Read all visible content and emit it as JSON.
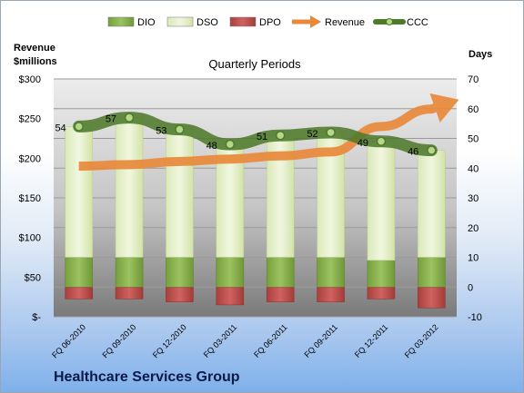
{
  "company_label": "Healthcare Services Group",
  "chart_data": {
    "type": "bar",
    "title": "Quarterly Periods",
    "left_axis_label": [
      "Revenue",
      "$millions"
    ],
    "right_axis_label": "Days",
    "left_axis": {
      "min": 0,
      "max": 300,
      "step": 50,
      "tick_labels": [
        "$-",
        "$50",
        "$100",
        "$150",
        "$200",
        "$250",
        "$300"
      ]
    },
    "right_axis": {
      "min": -10,
      "max": 70,
      "step": 10
    },
    "legend_position": "top",
    "grid": true,
    "categories": [
      "FQ 06-2010",
      "FQ 09-2010",
      "FQ 12-2010",
      "FQ 03-2011",
      "FQ 06-2011",
      "FQ 09-2011",
      "FQ 12-2011",
      "FQ 03-2012"
    ],
    "series": [
      {
        "name": "DIO",
        "kind": "stacked-bar",
        "axis": "right",
        "color": "#8db255",
        "values": [
          10,
          10,
          10,
          10,
          10,
          10,
          9,
          10
        ]
      },
      {
        "name": "DSO",
        "kind": "stacked-bar",
        "axis": "right",
        "color": "#e4efc9",
        "values": [
          44,
          47,
          43,
          38,
          41,
          42,
          40,
          36
        ]
      },
      {
        "name": "DPO",
        "kind": "stacked-bar",
        "axis": "right",
        "color": "#c0504d",
        "values": [
          -4,
          -4,
          -5,
          -6,
          -5,
          -5,
          -4,
          -7
        ]
      },
      {
        "name": "Revenue",
        "kind": "arrow-line",
        "axis": "left",
        "color": "#e8893a",
        "values": [
          190,
          192,
          196,
          199,
          203,
          208,
          240,
          262
        ]
      },
      {
        "name": "CCC",
        "kind": "line",
        "axis": "right",
        "color": "#4e7a2c",
        "values": [
          54,
          57,
          53,
          48,
          51,
          52,
          49,
          46
        ],
        "labels": [
          "54",
          "57",
          "53",
          "48",
          "51",
          "52",
          "49",
          "46"
        ]
      }
    ]
  }
}
